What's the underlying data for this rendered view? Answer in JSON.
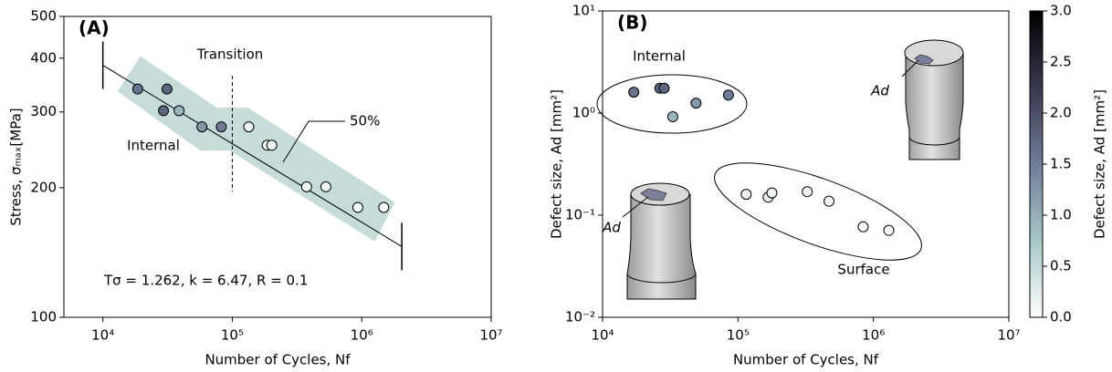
{
  "chart_data": [
    {
      "type": "scatter",
      "panel_label": "(A)",
      "xlabel": "Number of Cycles, Nf",
      "ylabel": "Stress, σₘₐₓ[MPa]",
      "xscale": "log",
      "yscale": "log",
      "xlim": [
        5000,
        10000000
      ],
      "ylim": [
        100,
        500
      ],
      "xticks": [
        {
          "value": 10000,
          "label": "10⁴"
        },
        {
          "value": 100000,
          "label": "10⁵"
        },
        {
          "value": 1000000,
          "label": "10⁶"
        },
        {
          "value": 10000000,
          "label": "10⁷"
        }
      ],
      "yticks": [
        100,
        200,
        300,
        400,
        500
      ],
      "x": [
        18600,
        29400,
        31300,
        38800,
        58300,
        82200,
        134000,
        186000,
        202000,
        375000,
        528000,
        933000,
        1480000
      ],
      "y": [
        339,
        302,
        339,
        302,
        277,
        277,
        277,
        251,
        251,
        201,
        201,
        180,
        180
      ],
      "c": [
        1.6,
        1.75,
        1.75,
        0.92,
        1.25,
        1.5,
        0.16,
        0.15,
        0.165,
        0.17,
        0.137,
        0.077,
        0.071
      ],
      "fit": {
        "x": [
          10000,
          2040000
        ],
        "y": [
          385,
          146
        ]
      },
      "band": {
        "color": "#c5dcd9",
        "x": [
          13000,
          19500,
          75700,
          132000,
          1800000,
          1260000,
          95000,
          56500
        ],
        "y": [
          335,
          404,
          307,
          307,
          185,
          150,
          244,
          244
        ]
      },
      "vline": 100000,
      "annotations": [
        "Transition",
        "Internal",
        "50%",
        "Tσ = 1.262, k = 6.47, R = 0.1"
      ]
    },
    {
      "type": "scatter",
      "panel_label": "(B)",
      "xlabel": "Number of Cycles, Nf",
      "ylabel": "Defect size, Ad [mm²]",
      "xscale": "log",
      "yscale": "log",
      "xlim": [
        10000,
        10000000
      ],
      "ylim": [
        0.01,
        10
      ],
      "xticks": [
        {
          "value": 10000,
          "label": "10⁴"
        },
        {
          "value": 100000,
          "label": "10⁵"
        },
        {
          "value": 1000000,
          "label": "10⁶"
        },
        {
          "value": 10000000,
          "label": "10⁷"
        }
      ],
      "yticks": [
        {
          "value": 0.01,
          "label": "10⁻²"
        },
        {
          "value": 0.1,
          "label": "10⁻¹"
        },
        {
          "value": 1,
          "label": "10⁰"
        },
        {
          "value": 10,
          "label": "10¹"
        }
      ],
      "x": [
        17000,
        26500,
        28500,
        33000,
        49000,
        85000,
        115000,
        167000,
        178000,
        325000,
        470000,
        840000,
        1300000
      ],
      "y": [
        1.6,
        1.75,
        1.75,
        0.92,
        1.25,
        1.5,
        0.16,
        0.15,
        0.165,
        0.17,
        0.137,
        0.077,
        0.071
      ],
      "c": [
        1.6,
        1.75,
        1.75,
        0.92,
        1.25,
        1.5,
        0.16,
        0.15,
        0.165,
        0.17,
        0.137,
        0.077,
        0.071
      ],
      "annotations": [
        "Internal",
        "Surface",
        "Ad",
        "Ad"
      ],
      "colorbar": {
        "label": "Defect size, Ad [mm²]",
        "lim": [
          0,
          3
        ],
        "colors": [
          "#ffffff",
          "#a7c7c7",
          "#6f7d98",
          "#38384d",
          "#000000"
        ],
        "ticks": [
          {
            "value": 0,
            "label": "0.0"
          },
          {
            "value": 0.5,
            "label": "0.5"
          },
          {
            "value": 1,
            "label": "1.0"
          },
          {
            "value": 1.5,
            "label": "1.5"
          },
          {
            "value": 2,
            "label": "2.0"
          },
          {
            "value": 2.5,
            "label": "2.5"
          },
          {
            "value": 3,
            "label": "3.0"
          }
        ]
      }
    }
  ]
}
